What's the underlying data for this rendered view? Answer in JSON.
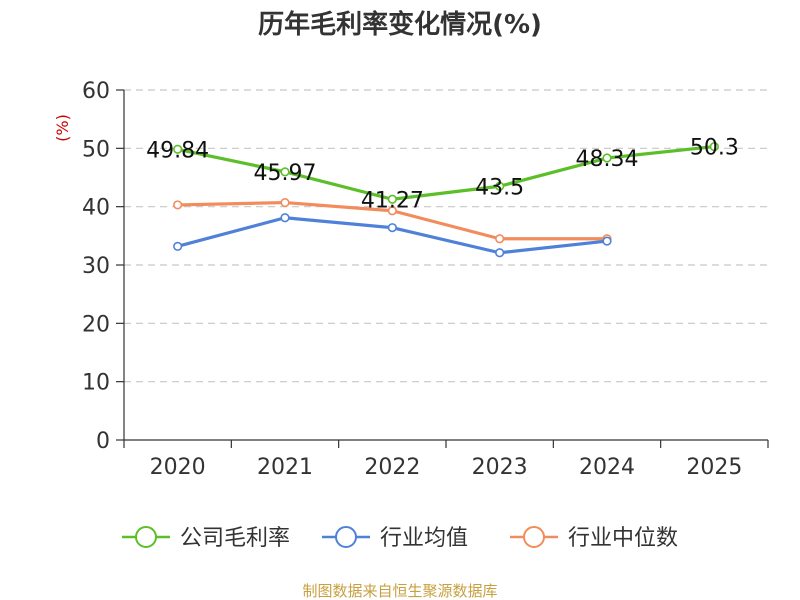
{
  "chart_data": {
    "type": "line",
    "title": "历年毛利率变化情况(%)",
    "ylabel": "(%)",
    "xlabel": "",
    "categories": [
      "2020",
      "2021",
      "2022",
      "2023",
      "2024",
      "2025"
    ],
    "ylim": [
      0,
      60
    ],
    "yticks": [
      0,
      10,
      20,
      30,
      40,
      50,
      60
    ],
    "grid": true,
    "legend_position": "bottom",
    "series": [
      {
        "name": "公司毛利率",
        "color": "#5cbf2a",
        "values": [
          49.84,
          45.97,
          41.27,
          43.5,
          48.34,
          50.3
        ],
        "labels": [
          "49.84",
          "45.97",
          "41.27",
          "43.5",
          "48.34",
          "50.3"
        ]
      },
      {
        "name": "行业均值",
        "color": "#4f81d9",
        "values": [
          33.2,
          38.1,
          36.4,
          32.1,
          34.1,
          null
        ]
      },
      {
        "name": "行业中位数",
        "color": "#f28c5c",
        "values": [
          40.3,
          40.7,
          39.3,
          34.5,
          34.5,
          null
        ]
      }
    ],
    "ylabel_color": "#cc0000"
  },
  "source": {
    "text": "制图数据来自恒生聚源数据库",
    "color": "#c8a040"
  }
}
